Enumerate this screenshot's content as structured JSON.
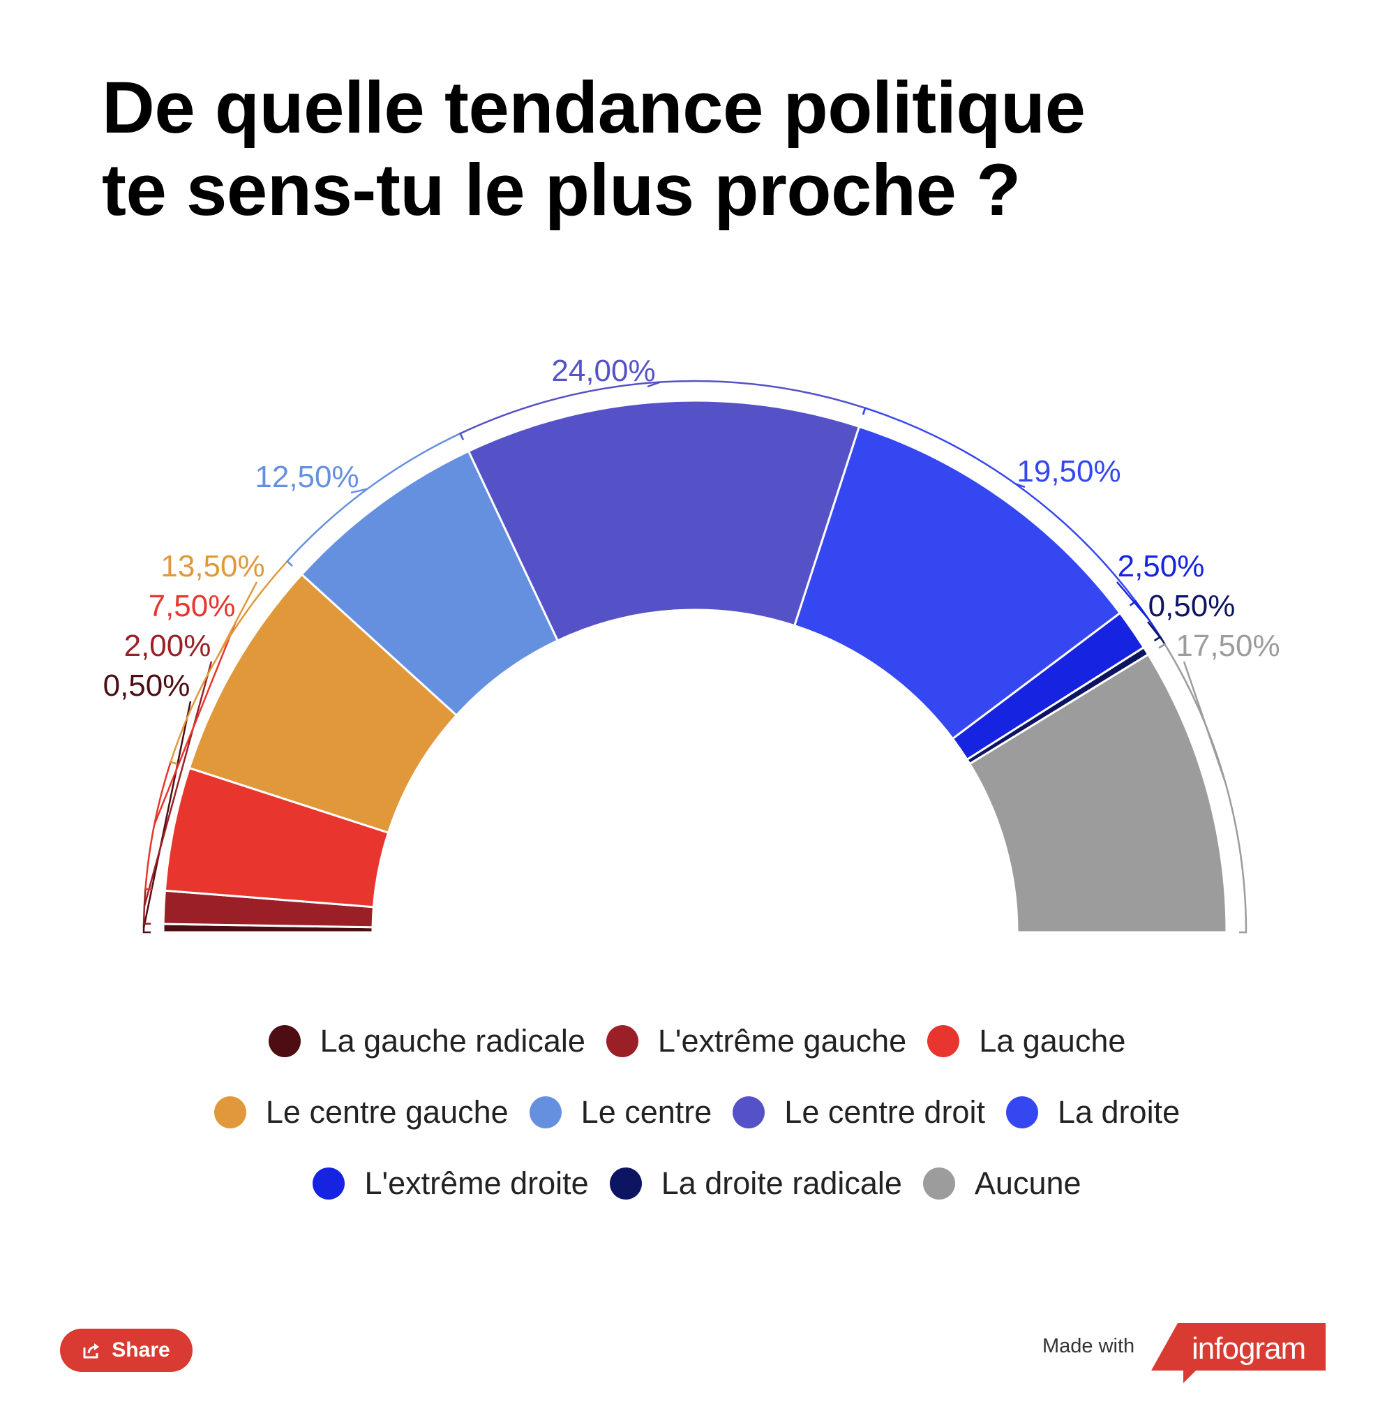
{
  "title": {
    "line1": "De quelle tendance politique",
    "line2": "te sens-tu le plus proche ?"
  },
  "chart_data": {
    "type": "pie",
    "subtype": "semicircle-donut",
    "title": "De quelle tendance politique te sens-tu le plus proche ?",
    "categories": [
      "La gauche radicale",
      "L'extrême gauche",
      "La gauche",
      "Le centre gauche",
      "Le centre",
      "Le centre droit",
      "La droite",
      "L'extrême droite",
      "La droite radicale",
      "Aucune"
    ],
    "values": [
      0.5,
      2.0,
      7.5,
      13.5,
      12.5,
      24.0,
      19.5,
      2.5,
      0.5,
      17.5
    ],
    "value_labels": [
      "0,50%",
      "2,00%",
      "7,50%",
      "13,50%",
      "12,50%",
      "24,00%",
      "19,50%",
      "2,50%",
      "0,50%",
      "17,50%"
    ],
    "colors": [
      "#4e0d12",
      "#9a1f26",
      "#e8352e",
      "#e0983a",
      "#6590e0",
      "#5552c8",
      "#3447f0",
      "#1623e0",
      "#0d1462",
      "#9c9c9c"
    ],
    "legend_position": "bottom",
    "grid": false
  },
  "footer": {
    "share_label": "Share",
    "made_with": "Made with",
    "brand": "infogram",
    "brand_color": "#d93a32"
  }
}
